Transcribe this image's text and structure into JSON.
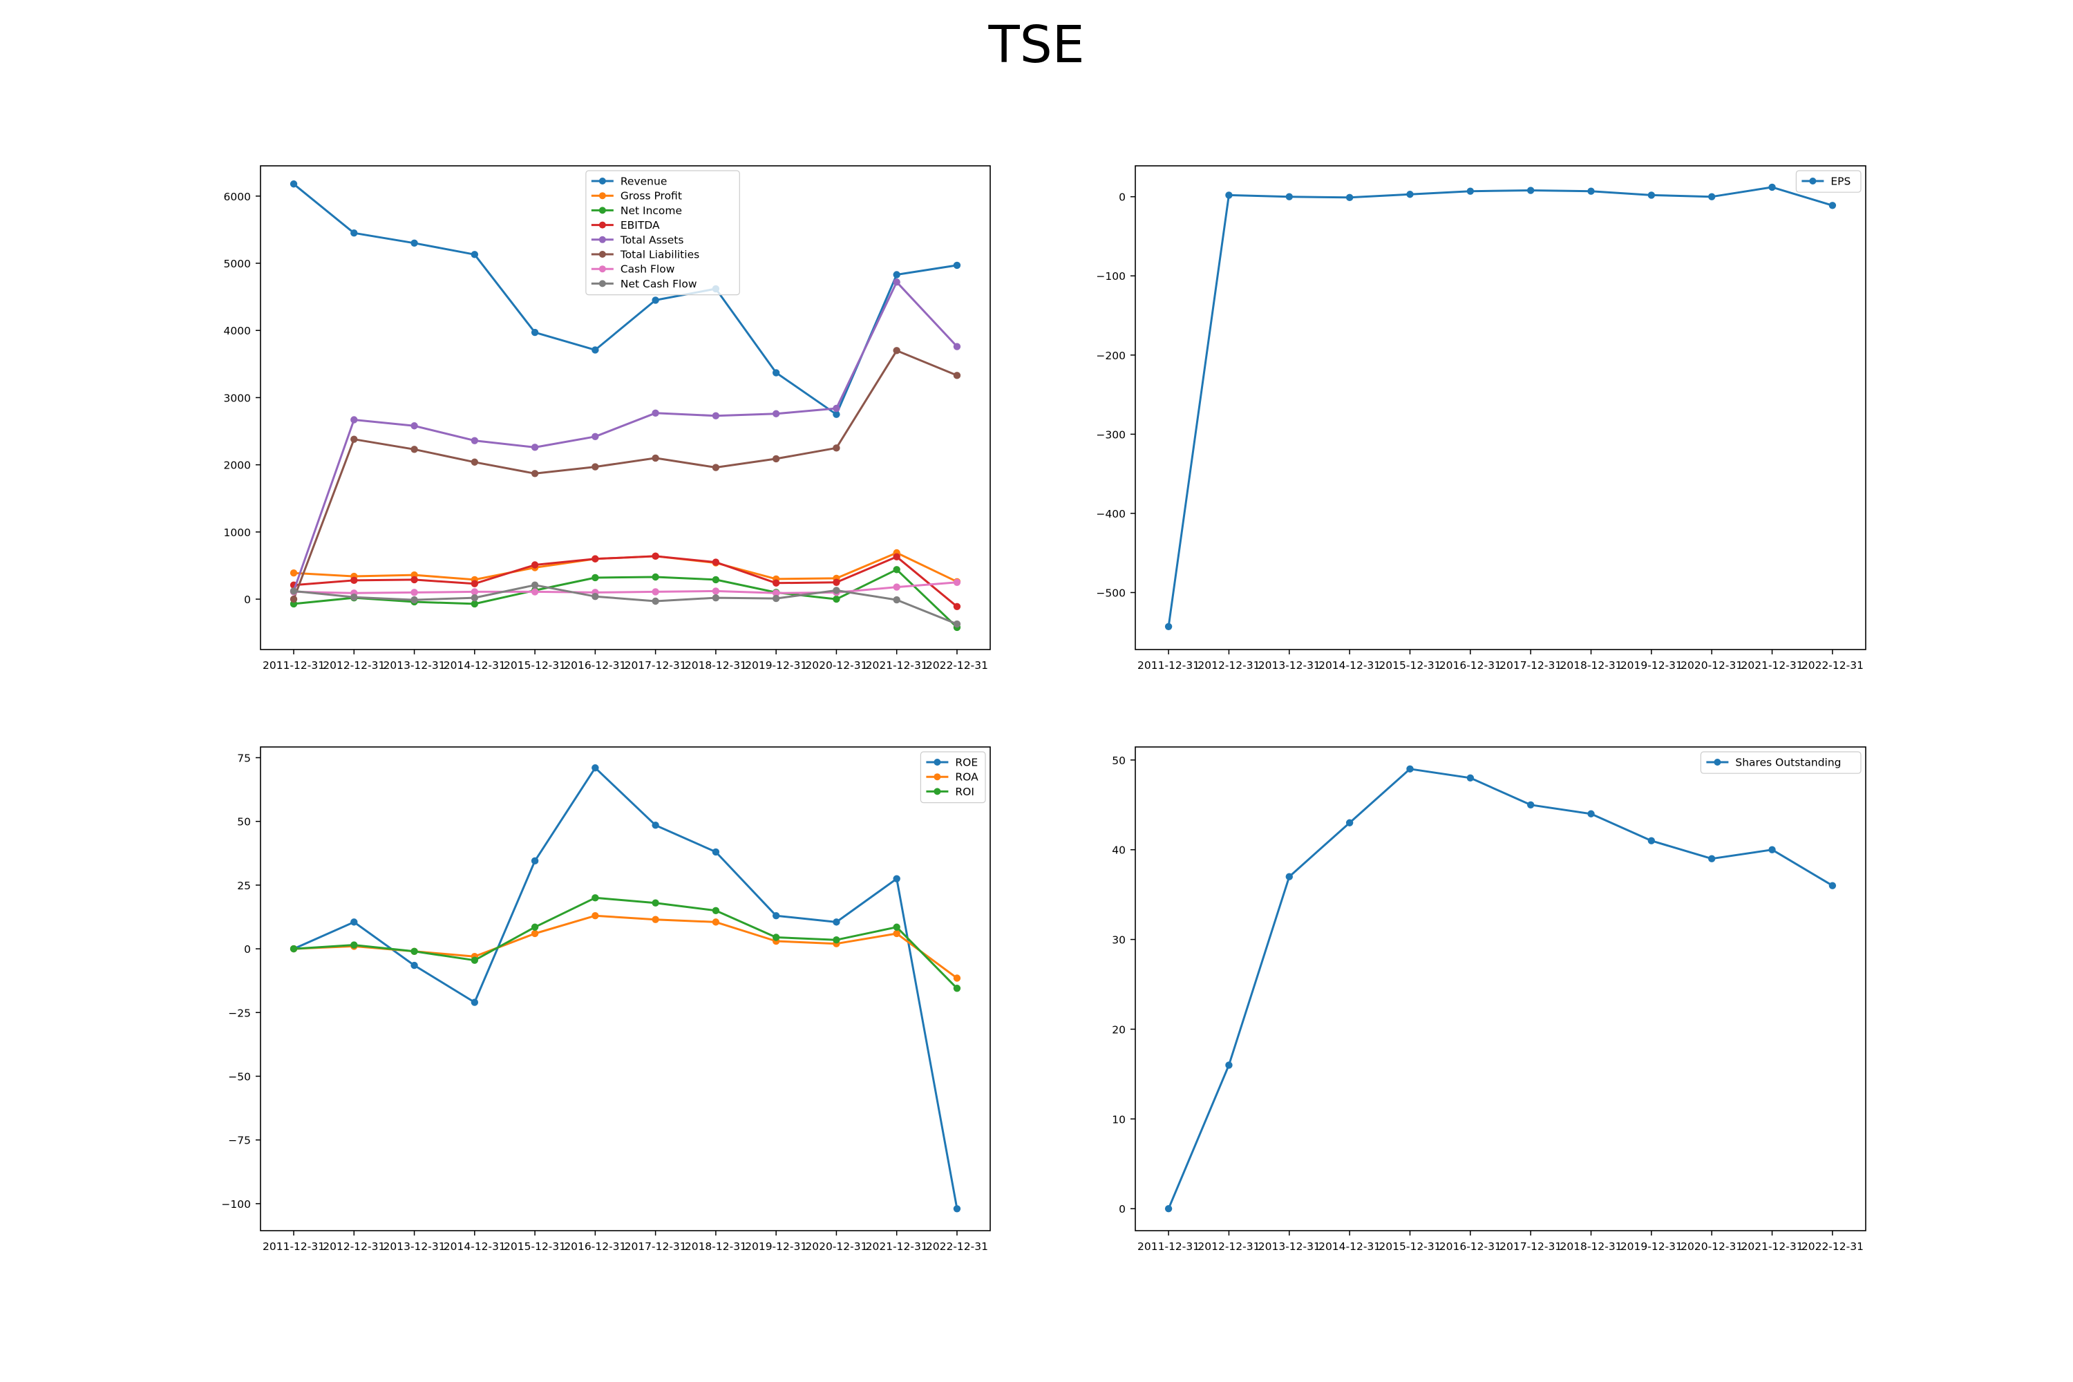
{
  "title": "TSE",
  "chart_data": [
    {
      "type": "line",
      "x": [
        "2011-12-31",
        "2012-12-31",
        "2013-12-31",
        "2014-12-31",
        "2015-12-31",
        "2016-12-31",
        "2017-12-31",
        "2018-12-31",
        "2019-12-31",
        "2020-12-31",
        "2021-12-31",
        "2022-12-31"
      ],
      "ylim": [
        -750,
        6450
      ],
      "yticks": [
        0,
        1000,
        2000,
        3000,
        4000,
        5000,
        6000
      ],
      "legend": "top-center",
      "series": [
        {
          "name": "Revenue",
          "color": "#1f77b4",
          "values": [
            6180,
            5450,
            5300,
            5130,
            3970,
            3710,
            4450,
            4620,
            3370,
            2750,
            4830,
            4970
          ]
        },
        {
          "name": "Gross Profit",
          "color": "#ff7f0e",
          "values": [
            390,
            340,
            360,
            290,
            470,
            600,
            640,
            540,
            300,
            310,
            690,
            260
          ]
        },
        {
          "name": "Net Income",
          "color": "#2ca02c",
          "values": [
            -70,
            20,
            -40,
            -70,
            130,
            320,
            330,
            290,
            100,
            0,
            440,
            -420
          ]
        },
        {
          "name": "EBITDA",
          "color": "#d62728",
          "values": [
            210,
            280,
            290,
            230,
            510,
            600,
            640,
            550,
            240,
            250,
            630,
            -110
          ]
        },
        {
          "name": "Total Assets",
          "color": "#9467bd",
          "values": [
            120,
            2670,
            2580,
            2360,
            2260,
            2420,
            2770,
            2730,
            2760,
            2840,
            4720,
            3760
          ]
        },
        {
          "name": "Total Liabilities",
          "color": "#8c564b",
          "values": [
            0,
            2380,
            2230,
            2040,
            1870,
            1970,
            2100,
            1960,
            2090,
            2250,
            3700,
            3330
          ]
        },
        {
          "name": "Cash Flow",
          "color": "#e377c2",
          "values": [
            110,
            90,
            100,
            110,
            110,
            100,
            110,
            120,
            90,
            100,
            180,
            250
          ]
        },
        {
          "name": "Net Cash Flow",
          "color": "#7f7f7f",
          "values": [
            120,
            30,
            -10,
            20,
            210,
            40,
            -30,
            20,
            10,
            130,
            -10,
            -370
          ]
        }
      ]
    },
    {
      "type": "line",
      "x": [
        "2011-12-31",
        "2012-12-31",
        "2013-12-31",
        "2014-12-31",
        "2015-12-31",
        "2016-12-31",
        "2017-12-31",
        "2018-12-31",
        "2019-12-31",
        "2020-12-31",
        "2021-12-31",
        "2022-12-31"
      ],
      "ylim": [
        -572,
        39
      ],
      "yticks": [
        -500,
        -400,
        -300,
        -200,
        -100,
        0
      ],
      "legend": "top-right",
      "series": [
        {
          "name": "EPS",
          "color": "#1f77b4",
          "values": [
            -543,
            2,
            0,
            -1,
            3,
            7,
            8,
            7,
            2,
            0,
            12,
            -11
          ]
        }
      ]
    },
    {
      "type": "line",
      "x": [
        "2011-12-31",
        "2012-12-31",
        "2013-12-31",
        "2014-12-31",
        "2015-12-31",
        "2016-12-31",
        "2017-12-31",
        "2018-12-31",
        "2019-12-31",
        "2020-12-31",
        "2021-12-31",
        "2022-12-31"
      ],
      "ylim": [
        -110.6,
        79.2
      ],
      "yticks": [
        -100,
        -75,
        -50,
        -25,
        0,
        25,
        50,
        75
      ],
      "legend": "top-right",
      "series": [
        {
          "name": "ROE",
          "color": "#1f77b4",
          "values": [
            0,
            10.5,
            -6.5,
            -21,
            34.5,
            71,
            48.5,
            38,
            13,
            10.5,
            27.5,
            -102
          ]
        },
        {
          "name": "ROA",
          "color": "#ff7f0e",
          "values": [
            0,
            1,
            -1,
            -3,
            6,
            13,
            11.5,
            10.5,
            3,
            2,
            6,
            -11.5
          ]
        },
        {
          "name": "ROI",
          "color": "#2ca02c",
          "values": [
            0,
            1.5,
            -1,
            -4.5,
            8.5,
            20,
            18,
            15,
            4.5,
            3.5,
            8.5,
            -15.5
          ]
        }
      ]
    },
    {
      "type": "line",
      "x": [
        "2011-12-31",
        "2012-12-31",
        "2013-12-31",
        "2014-12-31",
        "2015-12-31",
        "2016-12-31",
        "2017-12-31",
        "2018-12-31",
        "2019-12-31",
        "2020-12-31",
        "2021-12-31",
        "2022-12-31"
      ],
      "ylim": [
        -2.45,
        51.45
      ],
      "yticks": [
        0,
        10,
        20,
        30,
        40,
        50
      ],
      "legend": "top-right",
      "series": [
        {
          "name": "Shares Outstanding",
          "color": "#1f77b4",
          "values": [
            0,
            16,
            37,
            43,
            49,
            48,
            45,
            44,
            41,
            39,
            40,
            36
          ]
        }
      ]
    }
  ]
}
